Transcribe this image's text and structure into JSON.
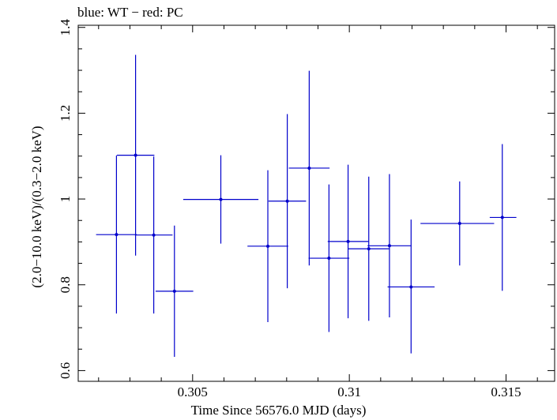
{
  "chart_data": {
    "type": "scatter",
    "title": "blue: WT − red: PC",
    "xlabel": "Time Since 56576.0 MJD (days)",
    "ylabel": "(2.0−10.0 keV)/(0.3−2.0 keV)",
    "xlim": [
      0.30135,
      0.31655
    ],
    "ylim": [
      0.575,
      1.405
    ],
    "xticks": [
      {
        "value": 0.305,
        "label": "0.305"
      },
      {
        "value": 0.31,
        "label": "0.31"
      },
      {
        "value": 0.315,
        "label": "0.315"
      }
    ],
    "yticks": [
      {
        "value": 0.6,
        "label": "0.6"
      },
      {
        "value": 0.8,
        "label": "0.8"
      },
      {
        "value": 1.0,
        "label": "1"
      },
      {
        "value": 1.2,
        "label": "1.2"
      },
      {
        "value": 1.4,
        "label": "1.4"
      }
    ],
    "series": [
      {
        "name": "WT",
        "color": "#0000cc",
        "points": [
          {
            "x": 0.30257,
            "xlo": 0.30192,
            "xhi": 0.30322,
            "y": 0.917,
            "ylo": 0.733,
            "yhi": 1.101
          },
          {
            "x": 0.30318,
            "xlo": 0.30258,
            "xhi": 0.30378,
            "y": 1.102,
            "ylo": 0.868,
            "yhi": 1.336
          },
          {
            "x": 0.30376,
            "xlo": 0.30316,
            "xhi": 0.30436,
            "y": 0.916,
            "ylo": 0.733,
            "yhi": 1.099
          },
          {
            "x": 0.30442,
            "xlo": 0.30382,
            "xhi": 0.30502,
            "y": 0.785,
            "ylo": 0.632,
            "yhi": 0.938
          },
          {
            "x": 0.3059,
            "xlo": 0.3047,
            "xhi": 0.3071,
            "y": 0.999,
            "ylo": 0.896,
            "yhi": 1.102
          },
          {
            "x": 0.3074,
            "xlo": 0.30675,
            "xhi": 0.30805,
            "y": 0.89,
            "ylo": 0.713,
            "yhi": 1.067
          },
          {
            "x": 0.30802,
            "xlo": 0.30742,
            "xhi": 0.30862,
            "y": 0.995,
            "ylo": 0.792,
            "yhi": 1.198
          },
          {
            "x": 0.30872,
            "xlo": 0.30807,
            "xhi": 0.30937,
            "y": 1.072,
            "ylo": 0.845,
            "yhi": 1.299
          },
          {
            "x": 0.30935,
            "xlo": 0.3087,
            "xhi": 0.31,
            "y": 0.862,
            "ylo": 0.69,
            "yhi": 1.034
          },
          {
            "x": 0.30996,
            "xlo": 0.30931,
            "xhi": 0.31061,
            "y": 0.901,
            "ylo": 0.722,
            "yhi": 1.08
          },
          {
            "x": 0.31062,
            "xlo": 0.30997,
            "xhi": 0.31127,
            "y": 0.884,
            "ylo": 0.716,
            "yhi": 1.052
          },
          {
            "x": 0.31128,
            "xlo": 0.31058,
            "xhi": 0.31198,
            "y": 0.891,
            "ylo": 0.724,
            "yhi": 1.058
          },
          {
            "x": 0.31197,
            "xlo": 0.31122,
            "xhi": 0.31272,
            "y": 0.795,
            "ylo": 0.64,
            "yhi": 0.952
          },
          {
            "x": 0.31352,
            "xlo": 0.31227,
            "xhi": 0.31462,
            "y": 0.943,
            "ylo": 0.845,
            "yhi": 1.041
          },
          {
            "x": 0.31488,
            "xlo": 0.31448,
            "xhi": 0.31533,
            "y": 0.957,
            "ylo": 0.786,
            "yhi": 1.128
          }
        ]
      },
      {
        "name": "PC",
        "color": "#cc0000",
        "points": []
      }
    ]
  }
}
